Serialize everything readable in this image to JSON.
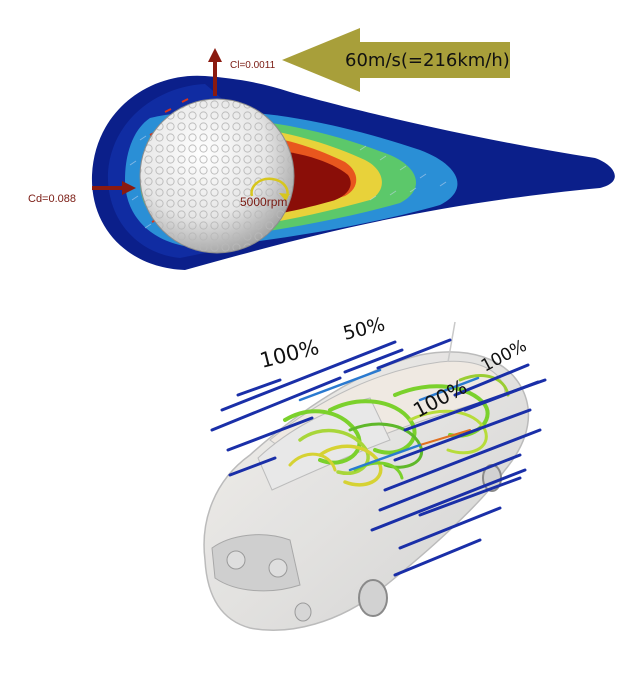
{
  "golf_ball_panel": {
    "speed_label": "60m/s(=216km/h)",
    "lift_label": "Cl=0.0011",
    "drag_label": "Cd=0.088",
    "rpm_label": "5000rpm",
    "colors": {
      "wake_outer": "#0b1f8a",
      "wake_mid": "#2a8fd6",
      "wake_green": "#5cc86a",
      "wake_yellow": "#e8d23a",
      "wake_orange": "#e8561e",
      "wake_core": "#8a0e08",
      "ball": "#f2f2f2",
      "arrow": "#a89f3a",
      "force_arrow": "#8a1a10"
    }
  },
  "car_panel": {
    "percent_labels": [
      "100%",
      "50%",
      "100%",
      "100%"
    ],
    "colors": {
      "streamline_blue": "#1a2fa8",
      "streamline_green": "#7bd12c",
      "streamline_yellow": "#d6d233",
      "car_body": "#d9d9d9"
    }
  }
}
